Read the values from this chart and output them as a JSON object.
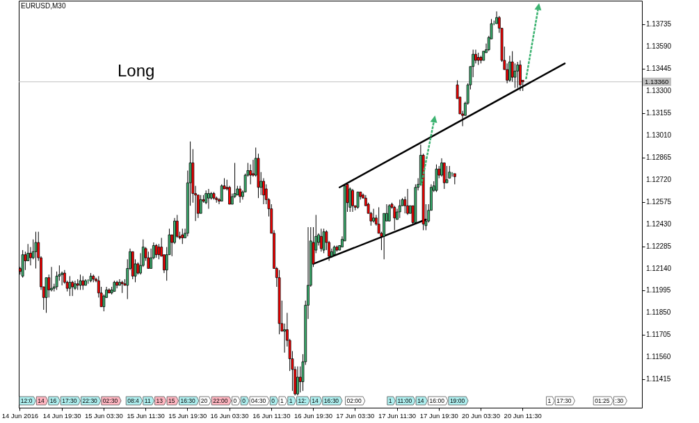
{
  "chart_data": {
    "type": "candlestick",
    "title": "EURUSD,M30",
    "annotations": [
      "Long",
      "12:0",
      "14",
      "16",
      "17:30",
      "22:30",
      "02:30",
      "08:4",
      "11",
      "13",
      "15",
      "16:30",
      "20",
      "22:00",
      "0",
      "0",
      "04:30",
      "0",
      "1",
      "1",
      "12:",
      "14",
      "16:30",
      "02:00",
      "1",
      "11:00",
      "14",
      "16:00",
      "19:00",
      "1",
      "17:30",
      "01:25",
      ":30"
    ],
    "categories": [
      "14 Jun 2016",
      null,
      null,
      null,
      null,
      null,
      null,
      null,
      null,
      null,
      null,
      null,
      null,
      null,
      null,
      null,
      "14 Jun 19:30",
      null,
      null,
      null,
      null,
      null,
      null,
      null,
      null,
      null,
      null,
      null,
      null,
      null,
      null,
      null,
      "15 Jun 03:30",
      null,
      null,
      null,
      null,
      null,
      null,
      null,
      null,
      null,
      null,
      null,
      null,
      null,
      null,
      null,
      "15 Jun 11:30",
      null,
      null,
      null,
      null,
      null,
      null,
      null,
      null,
      null,
      null,
      null,
      null,
      null,
      null,
      null,
      "15 Jun 19:30",
      null,
      null,
      null,
      null,
      null,
      null,
      null,
      null,
      null,
      null,
      null,
      null,
      null,
      null,
      null,
      "16 Jun 03:30",
      null,
      null,
      null,
      null,
      null,
      null,
      null,
      null,
      null,
      null,
      null,
      null,
      null,
      null,
      null,
      "16 Jun 11:30",
      null,
      null,
      null,
      null,
      null,
      null,
      null,
      null,
      null,
      null,
      null,
      null,
      null,
      null,
      null,
      "16 Jun 19:30",
      null,
      null,
      null,
      null,
      null,
      null,
      null,
      null,
      null,
      null,
      null,
      null,
      null,
      null,
      null,
      "17 Jun 03:30",
      null,
      null,
      null,
      null,
      null,
      null,
      null,
      null,
      null,
      null,
      null,
      null,
      null,
      null,
      null,
      "17 Jun 11:30",
      null,
      null,
      null,
      null,
      null,
      null,
      null,
      null,
      null,
      null,
      null,
      null,
      null,
      null,
      null,
      "17 Jun 19:30",
      null,
      null,
      null,
      null,
      null,
      null,
      null,
      null,
      null,
      null,
      null,
      null,
      null,
      null,
      null,
      "20 Jun 03:30",
      null,
      null,
      null,
      null,
      null,
      null,
      null,
      null,
      null,
      null,
      null,
      null,
      null,
      null,
      null,
      "20 Jun 11:30",
      null,
      null,
      null,
      null,
      null,
      null,
      null,
      null,
      null,
      null,
      null,
      null,
      null,
      null,
      null,
      null,
      null,
      null,
      null,
      null,
      null,
      null,
      null,
      null,
      null,
      null,
      null,
      null,
      null,
      null,
      null,
      null,
      null,
      null,
      null,
      null,
      null,
      null,
      null,
      null,
      null,
      null,
      null,
      null,
      null
    ],
    "ohlc": [
      [
        1.1214,
        1.1215,
        1.121,
        1.1212
      ],
      [
        1.1209,
        1.1226,
        1.1208,
        1.1223
      ],
      [
        1.1223,
        1.1225,
        1.1213,
        1.1219
      ],
      [
        1.1219,
        1.123,
        1.1219,
        1.1224
      ],
      [
        1.1224,
        1.1228,
        1.1216,
        1.1221
      ],
      [
        1.1221,
        1.1233,
        1.122,
        1.1225
      ],
      [
        1.1225,
        1.1238,
        1.1214,
        1.1231
      ],
      [
        1.1231,
        1.1238,
        1.1219,
        1.1221
      ],
      [
        1.1221,
        1.1222,
        1.12,
        1.1202
      ],
      [
        1.1202,
        1.1202,
        1.1187,
        1.1195
      ],
      [
        1.1195,
        1.1208,
        1.1185,
        1.1208
      ],
      [
        1.1208,
        1.121,
        1.1195,
        1.12
      ],
      [
        1.12,
        1.1215,
        1.1199,
        1.1201
      ],
      [
        1.1201,
        1.1204,
        1.1199,
        1.1202
      ],
      [
        1.1202,
        1.1212,
        1.12,
        1.1209
      ],
      [
        1.1209,
        1.1216,
        1.1206,
        1.121
      ],
      [
        1.121,
        1.1212,
        1.1203,
        1.1211
      ],
      [
        1.1211,
        1.1213,
        1.1204,
        1.1205
      ],
      [
        1.1205,
        1.1206,
        1.1199,
        1.1201
      ],
      [
        1.1201,
        1.1209,
        1.1196,
        1.1205
      ],
      [
        1.1205,
        1.1206,
        1.1196,
        1.1202
      ],
      [
        1.1201,
        1.1206,
        1.12,
        1.1204
      ],
      [
        1.1204,
        1.1207,
        1.12,
        1.1203
      ],
      [
        1.1203,
        1.121,
        1.12,
        1.1206
      ],
      [
        1.1206,
        1.1209,
        1.12,
        1.1203
      ],
      [
        1.1203,
        1.1207,
        1.1203,
        1.1206
      ],
      [
        1.1206,
        1.1207,
        1.1204,
        1.1206
      ],
      [
        1.1206,
        1.1211,
        1.1205,
        1.1209
      ],
      [
        1.1209,
        1.121,
        1.1205,
        1.1207
      ],
      [
        1.1207,
        1.1208,
        1.1205,
        1.1206
      ],
      [
        1.1206,
        1.1209,
        1.1195,
        1.1198
      ],
      [
        1.1198,
        1.1202,
        1.1189,
        1.1189
      ],
      [
        1.1189,
        1.1197,
        1.1186,
        1.1196
      ],
      [
        1.1195,
        1.1202,
        1.1195,
        1.12
      ],
      [
        1.12,
        1.1201,
        1.1198,
        1.1198
      ],
      [
        1.1198,
        1.1202,
        1.1197,
        1.12
      ],
      [
        1.1199,
        1.1206,
        1.1199,
        1.1205
      ],
      [
        1.1205,
        1.1206,
        1.1201,
        1.1203
      ],
      [
        1.1203,
        1.1207,
        1.1203,
        1.1205
      ],
      [
        1.1205,
        1.1206,
        1.1198,
        1.1204
      ],
      [
        1.1204,
        1.1207,
        1.1203,
        1.1203
      ],
      [
        1.1203,
        1.122,
        1.1194,
        1.1214
      ],
      [
        1.1214,
        1.1227,
        1.1213,
        1.1225
      ],
      [
        1.1225,
        1.1225,
        1.1207,
        1.1209
      ],
      [
        1.1209,
        1.122,
        1.1205,
        1.1217
      ],
      [
        1.1217,
        1.1218,
        1.121,
        1.1211
      ],
      [
        1.1211,
        1.1224,
        1.121,
        1.1216
      ],
      [
        1.1216,
        1.1233,
        1.1215,
        1.1228
      ],
      [
        1.1227,
        1.1228,
        1.1219,
        1.1221
      ],
      [
        1.1221,
        1.1225,
        1.1214,
        1.1214
      ],
      [
        1.1214,
        1.1227,
        1.1214,
        1.1221
      ],
      [
        1.1221,
        1.1231,
        1.122,
        1.1229
      ],
      [
        1.1229,
        1.123,
        1.1221,
        1.1223
      ],
      [
        1.1228,
        1.123,
        1.122,
        1.1223
      ],
      [
        1.1228,
        1.1234,
        1.1222,
        1.1222
      ],
      [
        1.1223,
        1.1223,
        1.1211,
        1.1213
      ],
      [
        1.1213,
        1.1228,
        1.1206,
        1.1223
      ],
      [
        1.1223,
        1.124,
        1.1223,
        1.1236
      ],
      [
        1.1236,
        1.1236,
        1.1222,
        1.1231
      ],
      [
        1.1231,
        1.1247,
        1.123,
        1.1245
      ],
      [
        1.1245,
        1.1249,
        1.1234,
        1.1235
      ],
      [
        1.1235,
        1.1238,
        1.1233,
        1.1234
      ],
      [
        1.1236,
        1.124,
        1.123,
        1.1234
      ],
      [
        1.1234,
        1.124,
        1.1234,
        1.1237
      ],
      [
        1.1237,
        1.1278,
        1.1235,
        1.127
      ],
      [
        1.127,
        1.1297,
        1.1255,
        1.1283
      ],
      [
        1.1283,
        1.1292,
        1.1257,
        1.1263
      ],
      [
        1.1263,
        1.1268,
        1.1245,
        1.1262
      ],
      [
        1.1262,
        1.1262,
        1.1247,
        1.125
      ],
      [
        1.125,
        1.1262,
        1.125,
        1.1259
      ],
      [
        1.1259,
        1.1262,
        1.1257,
        1.1258
      ],
      [
        1.1257,
        1.1265,
        1.1256,
        1.1263
      ],
      [
        1.126,
        1.1266,
        1.1253,
        1.1263
      ],
      [
        1.126,
        1.1264,
        1.1259,
        1.1263
      ],
      [
        1.1263,
        1.1264,
        1.1259,
        1.126
      ],
      [
        1.126,
        1.1261,
        1.1257,
        1.1259
      ],
      [
        1.1259,
        1.126,
        1.1256,
        1.1258
      ],
      [
        1.1258,
        1.1269,
        1.1258,
        1.1268
      ],
      [
        1.1268,
        1.1273,
        1.1266,
        1.1266
      ],
      [
        1.1267,
        1.1272,
        1.1265,
        1.1266
      ],
      [
        1.1267,
        1.1268,
        1.1256,
        1.1256
      ],
      [
        1.1256,
        1.1263,
        1.1256,
        1.1261
      ],
      [
        1.1261,
        1.1283,
        1.126,
        1.1263
      ],
      [
        1.1262,
        1.1268,
        1.1262,
        1.1266
      ],
      [
        1.1266,
        1.1268,
        1.1257,
        1.1261
      ],
      [
        1.1261,
        1.1265,
        1.1259,
        1.1264
      ],
      [
        1.1264,
        1.1276,
        1.1264,
        1.1275
      ],
      [
        1.1275,
        1.1283,
        1.1274,
        1.1278
      ],
      [
        1.1278,
        1.1282,
        1.1269,
        1.1275
      ],
      [
        1.1276,
        1.1285,
        1.1274,
        1.1275
      ],
      [
        1.1275,
        1.1293,
        1.1274,
        1.1286
      ],
      [
        1.1286,
        1.1289,
        1.126,
        1.1267
      ],
      [
        1.1267,
        1.1277,
        1.1262,
        1.1271
      ],
      [
        1.1271,
        1.1273,
        1.1256,
        1.1262
      ],
      [
        1.1266,
        1.1269,
        1.1256,
        1.1259
      ],
      [
        1.1259,
        1.126,
        1.1248,
        1.1253
      ],
      [
        1.1253,
        1.1256,
        1.1237,
        1.1237
      ],
      [
        1.1237,
        1.1239,
        1.1214,
        1.1214
      ],
      [
        1.1214,
        1.1215,
        1.1202,
        1.1208
      ],
      [
        1.1208,
        1.1213,
        1.1171,
        1.1178
      ],
      [
        1.1178,
        1.1193,
        1.1173,
        1.1173
      ],
      [
        1.1173,
        1.1178,
        1.1159,
        1.1174
      ],
      [
        1.1174,
        1.1185,
        1.1163,
        1.1167
      ],
      [
        1.1167,
        1.1168,
        1.1147,
        1.1155
      ],
      [
        1.1155,
        1.116,
        1.1134,
        1.1148
      ],
      [
        1.1148,
        1.115,
        1.1131,
        1.1132
      ],
      [
        1.1132,
        1.115,
        1.1131,
        1.1143
      ],
      [
        1.1143,
        1.115,
        1.1133,
        1.114
      ],
      [
        1.114,
        1.1158,
        1.1134,
        1.1153
      ],
      [
        1.1153,
        1.1193,
        1.1151,
        1.119
      ],
      [
        1.119,
        1.1241,
        1.1181,
        1.1203
      ],
      [
        1.1203,
        1.1241,
        1.1202,
        1.1232
      ],
      [
        1.1231,
        1.1241,
        1.1215,
        1.1217
      ],
      [
        1.1226,
        1.1249,
        1.1224,
        1.1235
      ],
      [
        1.1231,
        1.1237,
        1.1229,
        1.1236
      ],
      [
        1.1235,
        1.124,
        1.1225,
        1.1227
      ],
      [
        1.1226,
        1.124,
        1.1224,
        1.1238
      ],
      [
        1.1238,
        1.1239,
        1.1226,
        1.1231
      ],
      [
        1.1231,
        1.1232,
        1.1219,
        1.1222
      ],
      [
        1.1222,
        1.1227,
        1.1221,
        1.1225
      ],
      [
        1.1223,
        1.1229,
        1.1223,
        1.1228
      ],
      [
        1.1228,
        1.1229,
        1.1225,
        1.1226
      ],
      [
        1.1226,
        1.1229,
        1.1226,
        1.1229
      ],
      [
        1.1228,
        1.1235,
        1.1228,
        1.1233
      ],
      [
        1.1232,
        1.1269,
        1.1232,
        1.1268
      ],
      [
        1.1269,
        1.127,
        1.1251,
        1.1257
      ],
      [
        1.1254,
        1.1267,
        1.1251,
        1.1266
      ],
      [
        1.1265,
        1.1266,
        1.1251,
        1.1255
      ],
      [
        1.1255,
        1.1255,
        1.1252,
        1.1254
      ],
      [
        1.1254,
        1.1264,
        1.1253,
        1.1264
      ],
      [
        1.1264,
        1.1264,
        1.1259,
        1.1261
      ],
      [
        1.1262,
        1.1263,
        1.126,
        1.126
      ],
      [
        1.126,
        1.1262,
        1.1255,
        1.1255
      ],
      [
        1.1256,
        1.1257,
        1.125,
        1.125
      ],
      [
        1.125,
        1.1251,
        1.1242,
        1.1245
      ],
      [
        1.1245,
        1.1253,
        1.1244,
        1.1247
      ],
      [
        1.1247,
        1.1249,
        1.1242,
        1.1243
      ],
      [
        1.1243,
        1.1254,
        1.1237,
        1.1237
      ],
      [
        1.1237,
        1.1238,
        1.1226,
        1.1235
      ],
      [
        1.1235,
        1.125,
        1.122,
        1.125
      ],
      [
        1.1245,
        1.1256,
        1.1245,
        1.125
      ],
      [
        1.1245,
        1.1256,
        1.1245,
        1.1255
      ],
      [
        1.1256,
        1.1257,
        1.1253,
        1.1254
      ],
      [
        1.1254,
        1.1255,
        1.1239,
        1.1247
      ],
      [
        1.1246,
        1.1253,
        1.1246,
        1.1251
      ],
      [
        1.1251,
        1.1259,
        1.1247,
        1.1255
      ],
      [
        1.1255,
        1.126,
        1.1255,
        1.1259
      ],
      [
        1.1259,
        1.1261,
        1.125,
        1.1255
      ],
      [
        1.1255,
        1.1266,
        1.1249,
        1.125
      ],
      [
        1.125,
        1.1255,
        1.125,
        1.1255
      ],
      [
        1.1255,
        1.1255,
        1.1243,
        1.1244
      ],
      [
        1.1244,
        1.1269,
        1.1243,
        1.1267
      ],
      [
        1.1267,
        1.1273,
        1.1265,
        1.1269
      ],
      [
        1.1269,
        1.1295,
        1.1268,
        1.1288
      ],
      [
        1.1288,
        1.1289,
        1.1239,
        1.1243
      ],
      [
        1.1242,
        1.1256,
        1.1239,
        1.1245
      ],
      [
        1.1245,
        1.1256,
        1.1244,
        1.1252
      ],
      [
        1.1252,
        1.1269,
        1.1252,
        1.1267
      ],
      [
        1.1265,
        1.1271,
        1.1264,
        1.1268
      ],
      [
        1.1265,
        1.1282,
        1.1264,
        1.1279
      ],
      [
        1.1279,
        1.1281,
        1.1273,
        1.1275
      ],
      [
        1.1275,
        1.1286,
        1.1274,
        1.1283
      ],
      [
        1.1283,
        1.1283,
        1.1266,
        1.127
      ],
      [
        1.127,
        1.1281,
        1.127,
        1.1272
      ],
      [
        1.1273,
        1.1281,
        1.1273,
        1.1277
      ],
      [
        1.1276,
        1.1277,
        1.1274,
        1.1276
      ],
      [
        1.1276,
        1.1276,
        1.1269,
        1.1274
      ],
      [
        1.1334,
        1.1337,
        1.1325,
        1.1325
      ],
      [
        1.1326,
        1.1326,
        1.1315,
        1.1315
      ],
      [
        1.1315,
        1.1317,
        1.1307,
        1.1314
      ],
      [
        1.1314,
        1.1323,
        1.1314,
        1.1322
      ],
      [
        1.1322,
        1.1335,
        1.1321,
        1.1334
      ],
      [
        1.1334,
        1.1346,
        1.1331,
        1.1346
      ],
      [
        1.1346,
        1.1357,
        1.1339,
        1.1354
      ],
      [
        1.1354,
        1.1357,
        1.1348,
        1.135
      ],
      [
        1.1352,
        1.1355,
        1.1347,
        1.135
      ],
      [
        1.1352,
        1.1353,
        1.1348,
        1.135
      ],
      [
        1.135,
        1.1356,
        1.135,
        1.1356
      ],
      [
        1.1355,
        1.1361,
        1.1355,
        1.1357
      ],
      [
        1.1357,
        1.1366,
        1.1356,
        1.1365
      ],
      [
        1.1364,
        1.1377,
        1.1364,
        1.1374
      ],
      [
        1.1374,
        1.1376,
        1.1373,
        1.1374
      ],
      [
        1.1374,
        1.1382,
        1.1374,
        1.1378
      ],
      [
        1.1378,
        1.1379,
        1.1368,
        1.1371
      ],
      [
        1.1371,
        1.1371,
        1.1349,
        1.135
      ],
      [
        1.135,
        1.1359,
        1.1344,
        1.1344
      ],
      [
        1.1344,
        1.1348,
        1.1335,
        1.1337
      ],
      [
        1.1337,
        1.1353,
        1.1336,
        1.1349
      ],
      [
        1.1349,
        1.1356,
        1.1336,
        1.1339
      ],
      [
        1.1339,
        1.1348,
        1.1332,
        1.1343
      ],
      [
        1.1343,
        1.1349,
        1.1332,
        1.1347
      ],
      [
        1.1347,
        1.135,
        1.133,
        1.1334
      ],
      [
        1.1337,
        1.1337,
        1.133,
        1.1336
      ],
      null,
      null,
      null,
      null,
      null,
      null,
      null,
      null,
      null,
      null,
      null,
      null,
      null,
      null,
      null,
      null,
      null,
      null,
      null,
      null,
      null,
      null,
      null,
      null,
      null,
      null,
      null,
      null,
      null,
      null,
      null,
      null,
      null,
      null,
      null,
      null,
      null,
      null,
      null,
      null,
      null,
      null,
      null,
      null,
      null
    ],
    "colors": [
      "#ff0000",
      "#3cb371",
      "#ff0000",
      "#3cb371",
      "#ff0000",
      "#3cb371",
      "#3cb371",
      "#ff0000",
      "#ff0000",
      "#ff0000",
      "#3cb371",
      "#ff0000",
      "#3cb371",
      "#3cb371",
      "#3cb371",
      "#3cb371",
      "#3cb371",
      "#ff0000",
      "#ff0000",
      "#3cb371",
      "#ff0000",
      "#3cb371",
      "#ff0000",
      "#3cb371",
      "#ff0000",
      "#3cb371",
      "#3cb371",
      "#3cb371",
      "#ff0000",
      "#ff0000",
      "#ff0000",
      "#ff0000",
      "#3cb371",
      "#3cb371",
      "#ff0000",
      "#3cb371",
      "#3cb371",
      "#ff0000",
      "#3cb371",
      "#ff0000",
      "#ff0000",
      "#3cb371",
      "#3cb371",
      "#ff0000",
      "#3cb371",
      "#ff0000",
      "#3cb371",
      "#3cb371",
      "#ff0000",
      "#ff0000",
      "#3cb371",
      "#3cb371",
      "#ff0000",
      "#ff0000",
      "#ff0000",
      "#ff0000",
      "#3cb371",
      "#3cb371",
      "#ff0000",
      "#3cb371",
      "#ff0000",
      "#ff0000",
      "#ff0000",
      "#3cb371",
      "#3cb371",
      "#3cb371",
      "#ff0000",
      "#ff0000",
      "#ff0000",
      "#3cb371",
      "#ff0000",
      "#3cb371",
      "#3cb371",
      "#3cb371",
      "#ff0000",
      "#ff0000",
      "#ff0000",
      "#3cb371",
      "#ff0000",
      "#ff0000",
      "#ff0000",
      "#3cb371",
      "#3cb371",
      "#3cb371",
      "#ff0000",
      "#3cb371",
      "#3cb371",
      "#3cb371",
      "#ff0000",
      "#ff0000",
      "#3cb371",
      "#ff0000",
      "#3cb371",
      "#ff0000",
      "#ff0000",
      "#ff0000",
      "#ff0000",
      "#ff0000",
      "#ff0000",
      "#ff0000",
      "#ff0000",
      "#3cb371",
      "#ff0000",
      "#ff0000",
      "#ff0000",
      "#ff0000",
      "#3cb371",
      "#ff0000",
      "#3cb371",
      "#3cb371",
      "#3cb371",
      "#3cb371",
      "#ff0000",
      "#3cb371",
      "#3cb371",
      "#ff0000",
      "#3cb371",
      "#ff0000",
      "#ff0000",
      "#3cb371",
      "#3cb371",
      "#ff0000",
      "#3cb371",
      "#3cb371",
      "#3cb371",
      "#ff0000",
      "#3cb371",
      "#ff0000",
      "#ff0000",
      "#3cb371",
      "#ff0000",
      "#ff0000",
      "#ff0000",
      "#ff0000",
      "#ff0000",
      "#3cb371",
      "#ff0000",
      "#ff0000",
      "#ff0000",
      "#3cb371",
      "#3cb371",
      "#3cb371",
      "#ff0000",
      "#ff0000",
      "#3cb371",
      "#3cb371",
      "#3cb371",
      "#ff0000",
      "#ff0000",
      "#3cb371",
      "#ff0000",
      "#3cb371",
      "#3cb371",
      "#3cb371",
      "#ff0000",
      "#3cb371",
      "#3cb371",
      "#3cb371",
      "#3cb371",
      "#3cb371",
      "#ff0000",
      "#3cb371",
      "#ff0000",
      "#3cb371",
      "#3cb371",
      "#3cb371",
      "#ff0000",
      "#ff0000",
      "#ff0000",
      "#ff0000",
      "#3cb371",
      "#3cb371",
      "#3cb371",
      "#3cb371",
      "#ff0000",
      "#ff0000",
      "#ff0000",
      "#3cb371",
      "#3cb371",
      "#3cb371",
      "#3cb371",
      "#3cb371",
      "#3cb371",
      "#ff0000",
      "#ff0000",
      "#ff0000",
      "#ff0000",
      "#3cb371",
      "#ff0000",
      "#3cb371",
      "#3cb371",
      "#ff0000",
      "#ff0000",
      null,
      null,
      null,
      null,
      null,
      null,
      null,
      null,
      null,
      null,
      null,
      null,
      null,
      null,
      null,
      null,
      null,
      null,
      null,
      null,
      null,
      null,
      null,
      null,
      null,
      null,
      null,
      null,
      null,
      null,
      null,
      null,
      null,
      null,
      null,
      null,
      null,
      null,
      null,
      null,
      null,
      null,
      null,
      null,
      null
    ],
    "series": [
      {
        "type": "line",
        "color": "#000000",
        "values": [
          null,
          null,
          null,
          null,
          null,
          null,
          null,
          null,
          null,
          null,
          null,
          null,
          null,
          null,
          null,
          null,
          null,
          null,
          null,
          null,
          null,
          null,
          null,
          null,
          null,
          null,
          null,
          null,
          null,
          null,
          null,
          null,
          null,
          null,
          null,
          null,
          null,
          null,
          null,
          null,
          null,
          null,
          null,
          null,
          null,
          null,
          null,
          null,
          null,
          null,
          null,
          null,
          null,
          null,
          null,
          null,
          null,
          null,
          null,
          null,
          null,
          null,
          null,
          null,
          null,
          null,
          null,
          null,
          null,
          null,
          null,
          null,
          null,
          null,
          null,
          null,
          null,
          null,
          null,
          null,
          null,
          null,
          null,
          null,
          null,
          null,
          null,
          null,
          null,
          null,
          null,
          null,
          null,
          null,
          null,
          null,
          null,
          null,
          null,
          null,
          null,
          null,
          null,
          null,
          null,
          null,
          null,
          null,
          null,
          null,
          null,
          null,
          1.1217,
          null,
          null,
          null,
          null,
          null,
          null,
          null,
          null,
          null,
          null,
          null,
          null,
          null,
          null,
          null,
          null,
          null,
          null,
          null,
          null,
          null,
          null,
          null,
          null,
          null,
          null,
          null,
          null,
          null,
          null,
          null,
          null,
          null,
          null,
          null,
          null,
          null,
          null,
          null,
          null,
          null,
          null,
          1.1246,
          null,
          null,
          null,
          null,
          null,
          null,
          null,
          null,
          null,
          null,
          null,
          null,
          null,
          null,
          null,
          null,
          null,
          null,
          null,
          null,
          null,
          null,
          null,
          null,
          null,
          null,
          null,
          null,
          null,
          null,
          null,
          null,
          null,
          null,
          null,
          null,
          null,
          null,
          null,
          null,
          null,
          null,
          null,
          null,
          null,
          null,
          null,
          null,
          null,
          null,
          null,
          null,
          null,
          null,
          null,
          null,
          null,
          null,
          null,
          null,
          null,
          null,
          null,
          null,
          null,
          null,
          null,
          null,
          null,
          null,
          null,
          null,
          null,
          null,
          null,
          null,
          null,
          null,
          null,
          null,
          null,
          null
        ]
      },
      {
        "type": "line",
        "color": "#000000",
        "values": [
          null,
          null,
          null,
          null,
          null,
          null,
          null,
          null,
          null,
          null,
          null,
          null,
          null,
          null,
          null,
          null,
          null,
          null,
          null,
          null,
          null,
          null,
          null,
          null,
          null,
          null,
          null,
          null,
          null,
          null,
          null,
          null,
          null,
          null,
          null,
          null,
          null,
          null,
          null,
          null,
          null,
          null,
          null,
          null,
          null,
          null,
          null,
          null,
          null,
          null,
          null,
          null,
          null,
          null,
          null,
          null,
          null,
          null,
          null,
          null,
          null,
          null,
          null,
          null,
          null,
          null,
          null,
          null,
          null,
          null,
          null,
          null,
          null,
          null,
          null,
          null,
          null,
          null,
          null,
          null,
          null,
          null,
          null,
          null,
          null,
          null,
          null,
          null,
          null,
          null,
          null,
          null,
          null,
          null,
          null,
          null,
          null,
          null,
          null,
          null,
          null,
          null,
          null,
          null,
          null,
          null,
          null,
          null,
          null,
          null,
          null,
          null,
          null,
          null,
          null,
          null,
          null,
          null,
          null,
          null,
          null,
          null,
          1.1267,
          null,
          null,
          null,
          null,
          null,
          null,
          null,
          null,
          null,
          null,
          null,
          null,
          null,
          null,
          null,
          null,
          null,
          null,
          null,
          null,
          null,
          null,
          null,
          null,
          null,
          null,
          null,
          null,
          null,
          null,
          null,
          null,
          null,
          null,
          null,
          null,
          null,
          null,
          null,
          null,
          null,
          null,
          null,
          null,
          null,
          null,
          null,
          null,
          null,
          null,
          null,
          null,
          null,
          null,
          null,
          null,
          null,
          null,
          null,
          null,
          null,
          null,
          null,
          null,
          null,
          null,
          null,
          null,
          null,
          null,
          null,
          null,
          null,
          null,
          null,
          null,
          null,
          null,
          null,
          null,
          null,
          null,
          null,
          null,
          null,
          1.1348,
          null,
          null,
          null,
          null,
          null,
          null,
          null,
          null,
          null,
          null,
          null,
          null,
          null,
          null,
          null,
          null,
          null,
          null,
          null,
          null,
          null,
          null,
          null,
          null,
          null,
          null,
          null,
          null,
          null
        ]
      }
    ],
    "ref_lines": [
      {
        "axis": "y",
        "value": 1.1336,
        "label": "1.13360",
        "color": "#c0c0c0"
      }
    ],
    "ylim": [
      1.1123,
      1.1389
    ],
    "yticks": [
      1.11415,
      {
        "value": 1.1156,
        "label": "1.11560"
      },
      1.11705,
      {
        "value": 1.1185,
        "label": "1.11850"
      },
      1.11995,
      {
        "value": 1.1214,
        "label": "1.12140"
      },
      1.12285,
      {
        "value": 1.1243,
        "label": "1.12430"
      },
      1.12575,
      {
        "value": 1.1272,
        "label": "1.12720"
      },
      1.12865,
      {
        "value": 1.1301,
        "label": "1.13010"
      },
      1.13155,
      {
        "value": 1.133,
        "label": "1.13300"
      },
      1.13445,
      {
        "value": 1.1359,
        "label": "1.13590"
      },
      1.13735
    ]
  }
}
